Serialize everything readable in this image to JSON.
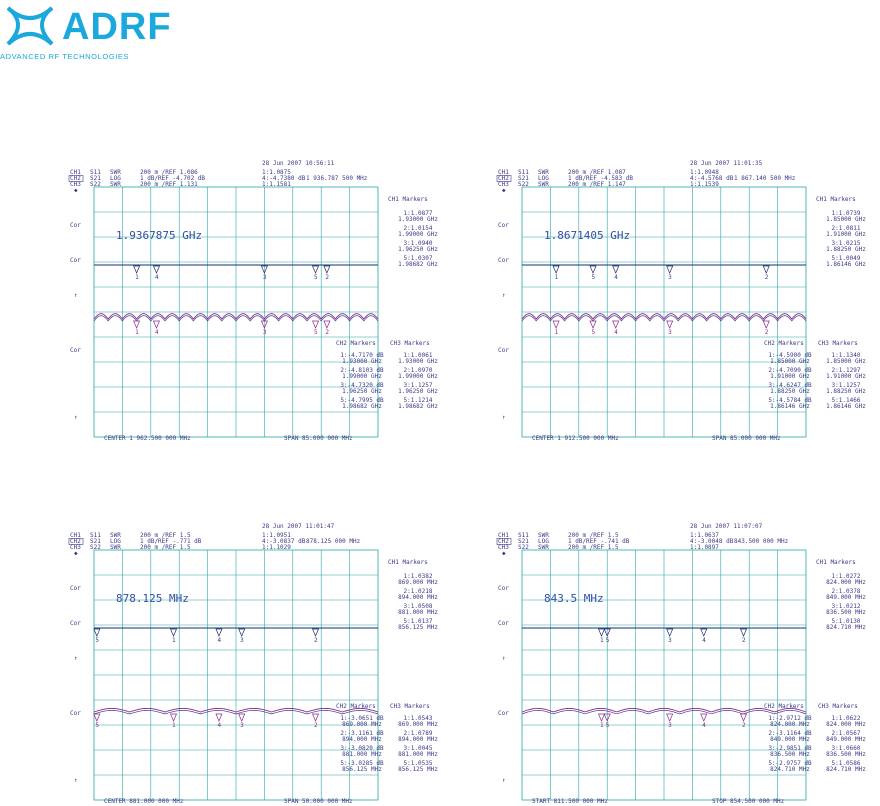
{
  "logo": {
    "word": "ADRF",
    "subtitle": "ADVANCED RF TECHNOLOGIES",
    "colors": {
      "primary": "#1aa8dd"
    }
  },
  "chart_data": [
    {
      "type": "line",
      "timestamp": "28 Jun 2007  10:56:11",
      "header": [
        [
          "CH1",
          "S11",
          "SWR",
          "200 m /REF 1.086",
          "1:1.0875"
        ],
        [
          "CH2",
          "S21",
          "LOG",
          "1 dB/REF -4.702 dB",
          "4:-4.7380 dB",
          "1 936.787 500 MHz"
        ],
        [
          "CH3",
          "S22",
          "SWR",
          "200 m /REF 1.131",
          "1:1.1581"
        ]
      ],
      "marker_freq": "1.9367875 GHz",
      "ch1_markers": {
        "title": "CH1 Markers",
        "items": [
          [
            "1:1.0877",
            "1.93000 GHz"
          ],
          [
            "2:1.0154",
            "1.99000 GHz"
          ],
          [
            "3:1.0940",
            "1.96250 GHz"
          ],
          [
            "5:1.0307",
            "1.98682 GHz"
          ]
        ]
      },
      "ch2_markers": {
        "title": "CH2 Markers",
        "items": [
          [
            "1:-4.7170 dB",
            "1.93000 GHz"
          ],
          [
            "2:-4.8103 dB",
            "1.99000 GHz"
          ],
          [
            "3:-4.7320 dB",
            "1.96250 GHz"
          ],
          [
            "5:-4.7995 dB",
            "1.98682 GHz"
          ]
        ]
      },
      "ch3_markers": {
        "title": "CH3 Markers",
        "items": [
          [
            "1:1.0061",
            "1.93000 GHz"
          ],
          [
            "2:1.0970",
            "1.99000 GHz"
          ],
          [
            "3:1.1257",
            "1.96250 GHz"
          ],
          [
            "5:1.1214",
            "1.98682 GHz"
          ]
        ]
      },
      "side_labels": [
        "Cor",
        "Cor",
        "Cor",
        "↑"
      ],
      "footer_left": "CENTER 1 962.500 000 MHz",
      "footer_right": "SPAN 85.000 000 MHz",
      "markers_pos": [
        0.15,
        0.82,
        0.6,
        0.22,
        0.78
      ],
      "ripple": 20,
      "ripple_amp": 0.9
    },
    {
      "type": "line",
      "timestamp": "28 Jun 2007  11:01:35",
      "header": [
        [
          "CH1",
          "S11",
          "SWR",
          "200 m /REF 1.087",
          "1:1.0948"
        ],
        [
          "CH2",
          "S21",
          "LOG",
          "1 dB/REF -4.583 dB",
          "4:-4.5768 dB",
          "1 867.140 500 MHz"
        ],
        [
          "CH3",
          "S22",
          "SWR",
          "200 m /REF 1.147",
          "1:1.1539"
        ]
      ],
      "marker_freq": "1.8671405 GHz",
      "ch1_markers": {
        "title": "CH1 Markers",
        "items": [
          [
            "1:1.0739",
            "1.85000 GHz"
          ],
          [
            "2:1.0811",
            "1.91000 GHz"
          ],
          [
            "3:1.0215",
            "1.88250 GHz"
          ],
          [
            "5:1.0049",
            "1.86146 GHz"
          ]
        ]
      },
      "ch2_markers": {
        "title": "CH2 Markers",
        "items": [
          [
            "1:-4.5900 dB",
            "1.85000 GHz"
          ],
          [
            "2:-4.7090 dB",
            "1.91000 GHz"
          ],
          [
            "3:-4.6247 dB",
            "1.88250 GHz"
          ],
          [
            "5:-4.5784 dB",
            "1.86146 GHz"
          ]
        ]
      },
      "ch3_markers": {
        "title": "CH3 Markers",
        "items": [
          [
            "1:1.1340",
            "1.85000 GHz"
          ],
          [
            "2:1.1297",
            "1.91000 GHz"
          ],
          [
            "3:1.1257",
            "1.88250 GHz"
          ],
          [
            "5:1.1466",
            "1.86146 GHz"
          ]
        ]
      },
      "side_labels": [
        "Cor",
        "Cor",
        "Cor",
        "↑"
      ],
      "footer_left": "CENTER 1 912.500 000 MHz",
      "footer_right": "SPAN 85.000 000 MHz",
      "markers_pos": [
        0.12,
        0.86,
        0.52,
        0.33,
        0.25
      ],
      "ripple": 20,
      "ripple_amp": 0.9
    },
    {
      "type": "line",
      "timestamp": "28 Jun 2007  11:01:47",
      "header": [
        [
          "CH1",
          "S11",
          "SWR",
          "200 m /REF 1.5",
          "1:1.0951"
        ],
        [
          "CH2",
          "S21",
          "LOG",
          "1 dB/REF -.771 dB",
          "4:-3.0837 dB",
          "878.125 000 MHz"
        ],
        [
          "CH3",
          "S22",
          "SWR",
          "200 m /REF 1.5",
          "1:1.1029"
        ]
      ],
      "marker_freq": "878.125 MHz",
      "ch1_markers": {
        "title": "CH1 Markers",
        "items": [
          [
            "1:1.0382",
            "869.000 MHz"
          ],
          [
            "2:1.0218",
            "894.000 MHz"
          ],
          [
            "3:1.0508",
            "881.000 MHz"
          ],
          [
            "5:1.0137",
            "856.125 MHz"
          ]
        ]
      },
      "ch2_markers": {
        "title": "CH2 Markers",
        "items": [
          [
            "1:-3.0651 dB",
            "869.000 MHz"
          ],
          [
            "2:-3.1161 dB",
            "894.000 MHz"
          ],
          [
            "3:-3.0820 dB",
            "881.000 MHz"
          ],
          [
            "5:-3.0285 dB",
            "856.125 MHz"
          ]
        ]
      },
      "ch3_markers": {
        "title": "CH3 Markers",
        "items": [
          [
            "1:1.0543",
            "869.000 MHz"
          ],
          [
            "2:1.0789",
            "894.000 MHz"
          ],
          [
            "3:1.0045",
            "881.000 MHz"
          ],
          [
            "5:1.0535",
            "856.125 MHz"
          ]
        ]
      },
      "side_labels": [
        "Cor",
        "Cor",
        "Cor",
        "↑"
      ],
      "footer_left": "CENTER 881.000 000 MHz",
      "footer_right": "SPAN 50.000 000 MHz",
      "markers_pos": [
        0.28,
        0.78,
        0.52,
        0.44,
        0.01
      ],
      "ripple": 8,
      "ripple_amp": 0.6
    },
    {
      "type": "line",
      "timestamp": "28 Jun 2007  11:07:07",
      "header": [
        [
          "CH1",
          "S11",
          "SWR",
          "200 m /REF 1.5",
          "1:1.0637"
        ],
        [
          "CH2",
          "S21",
          "LOG",
          "1 dB/REF -.741 dB",
          "4:-3.0048 dB",
          "843.500 000 MHz"
        ],
        [
          "CH3",
          "S22",
          "SWR",
          "200 m /REF 1.5",
          "1:1.0897"
        ]
      ],
      "marker_freq": "843.5 MHz",
      "ch1_markers": {
        "title": "CH1 Markers",
        "items": [
          [
            "1:1.0272",
            "824.000 MHz"
          ],
          [
            "2:1.0378",
            "849.000 MHz"
          ],
          [
            "3:1.0212",
            "836.500 MHz"
          ],
          [
            "5:1.0130",
            "824.710 MHz"
          ]
        ]
      },
      "ch2_markers": {
        "title": "CH2 Markers",
        "items": [
          [
            "1:-2.9712 dB",
            "824.000 MHz"
          ],
          [
            "2:-3.1164 dB",
            "849.000 MHz"
          ],
          [
            "3:-2.9851 dB",
            "836.500 MHz"
          ],
          [
            "5:-2.9757 dB",
            "824.710 MHz"
          ]
        ]
      },
      "ch3_markers": {
        "title": "CH3 Markers",
        "items": [
          [
            "1:1.0622",
            "824.000 MHz"
          ],
          [
            "2:1.0567",
            "849.000 MHz"
          ],
          [
            "3:1.0660",
            "836.500 MHz"
          ],
          [
            "5:1.0586",
            "824.710 MHz"
          ]
        ]
      },
      "side_labels": [
        "Cor",
        "Cor",
        "Cor",
        "↑"
      ],
      "footer_left": "START 811.500 000 MHz",
      "footer_right": "STOP 854.500 000 MHz",
      "markers_pos": [
        0.28,
        0.78,
        0.52,
        0.64,
        0.3
      ],
      "ripple": 9,
      "ripple_amp": 0.6
    }
  ]
}
